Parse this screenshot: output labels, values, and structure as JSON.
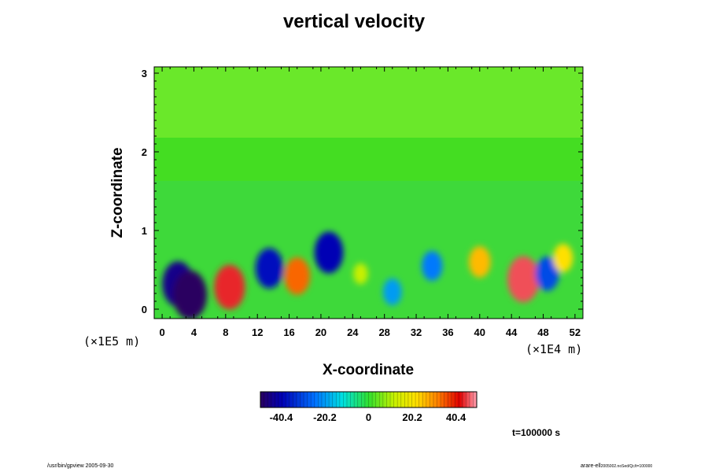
{
  "chart_data": {
    "type": "heatmap",
    "title": "vertical velocity",
    "xlabel": "X-coordinate",
    "ylabel": "Z-coordinate",
    "x_unit_label": "(×1E4 m)",
    "z_unit_label": "(×1E5 m)",
    "xlim": [
      -1,
      53
    ],
    "zlim": [
      -0.12,
      3.08
    ],
    "x_ticks": [
      "0",
      "4",
      "8",
      "12",
      "16",
      "20",
      "24",
      "28",
      "32",
      "36",
      "40",
      "44",
      "48",
      "52"
    ],
    "x_tick_values": [
      0,
      4,
      8,
      12,
      16,
      20,
      24,
      28,
      32,
      36,
      40,
      44,
      48,
      52
    ],
    "z_ticks": [
      "0",
      "1",
      "2",
      "3"
    ],
    "z_tick_values": [
      0,
      1,
      2,
      3
    ],
    "colorbar": {
      "range": [
        -50,
        50
      ],
      "tick_labels": [
        "-40.4",
        "-20.2",
        "0",
        "20.2",
        "40.4"
      ],
      "tick_values": [
        -40.4,
        -20.2,
        0,
        20.2,
        40.4
      ]
    },
    "features": [
      {
        "x": 2.0,
        "z": 0.32,
        "value": -45
      },
      {
        "x": 3.5,
        "z": 0.18,
        "value": -50
      },
      {
        "x": 8.5,
        "z": 0.28,
        "value": 44
      },
      {
        "x": 13.5,
        "z": 0.52,
        "value": -38
      },
      {
        "x": 17.0,
        "z": 0.42,
        "value": 34
      },
      {
        "x": 21.0,
        "z": 0.72,
        "value": -40
      },
      {
        "x": 25.0,
        "z": 0.45,
        "value": 12
      },
      {
        "x": 29.0,
        "z": 0.22,
        "value": -20
      },
      {
        "x": 34.0,
        "z": 0.55,
        "value": -24
      },
      {
        "x": 40.0,
        "z": 0.6,
        "value": 26
      },
      {
        "x": 45.5,
        "z": 0.38,
        "value": 46
      },
      {
        "x": 48.5,
        "z": 0.45,
        "value": -30
      },
      {
        "x": 50.5,
        "z": 0.65,
        "value": 22
      }
    ]
  },
  "time_label": "t=100000 s",
  "footer_left": "/usr/bin/gpview 2005-09-30",
  "footer_right_main": "arare-ell",
  "footer_right_sub": "2005002.noSed/Qc/t=100000"
}
